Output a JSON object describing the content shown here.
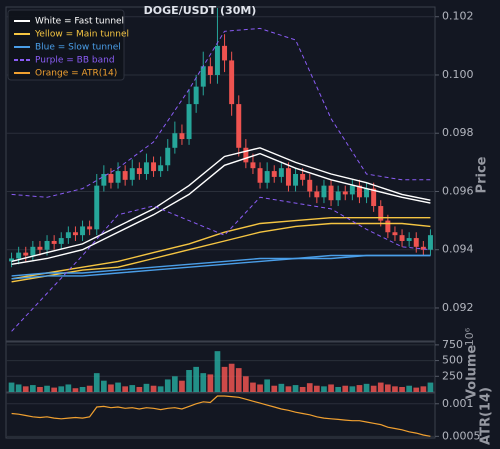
{
  "chart_data": [
    {
      "type": "candlestick",
      "title": "DOGE/USDT (30M)",
      "y_label": "Price",
      "grid": true,
      "legend_loc": "upper left",
      "up_color": "#26a69a",
      "down_color": "#ef5350",
      "ylim": [
        0.0909,
        0.1023
      ],
      "yticks": [
        0.092,
        0.094,
        0.096,
        0.098,
        {
          "value": 0.1,
          "label": "0.100"
        },
        0.102
      ],
      "open": [
        0.0936,
        0.0937,
        0.0939,
        0.0938,
        0.0941,
        0.094,
        0.0943,
        0.0942,
        0.0944,
        0.0946,
        0.0945,
        0.0948,
        0.0947,
        0.0962,
        0.0966,
        0.0963,
        0.0967,
        0.0964,
        0.0968,
        0.0966,
        0.097,
        0.0967,
        0.0969,
        0.0975,
        0.098,
        0.0978,
        0.099,
        0.0996,
        0.1003,
        0.1,
        0.101,
        0.1005,
        0.099,
        0.0975,
        0.097,
        0.0968,
        0.0963,
        0.0967,
        0.0965,
        0.0968,
        0.0962,
        0.0966,
        0.0964,
        0.096,
        0.0958,
        0.0962,
        0.0957,
        0.096,
        0.0959,
        0.0962,
        0.0958,
        0.0961,
        0.0955,
        0.095,
        0.0946,
        0.0945,
        0.0943,
        0.0944,
        0.0941,
        0.094
      ],
      "high": [
        0.0939,
        0.0941,
        0.0941,
        0.0943,
        0.0943,
        0.0945,
        0.0945,
        0.0946,
        0.0948,
        0.0948,
        0.095,
        0.095,
        0.0966,
        0.0969,
        0.0968,
        0.097,
        0.0969,
        0.0971,
        0.097,
        0.0973,
        0.0972,
        0.0972,
        0.0978,
        0.0984,
        0.0983,
        0.0995,
        0.1,
        0.1008,
        0.1006,
        0.1023,
        0.1014,
        0.1008,
        0.0993,
        0.0978,
        0.0973,
        0.097,
        0.097,
        0.0969,
        0.097,
        0.097,
        0.0968,
        0.0968,
        0.0966,
        0.0962,
        0.0964,
        0.0964,
        0.0962,
        0.0962,
        0.0964,
        0.0964,
        0.0963,
        0.0963,
        0.0957,
        0.0952,
        0.0948,
        0.0947,
        0.0946,
        0.0946,
        0.0943,
        0.0947
      ],
      "low": [
        0.0934,
        0.0935,
        0.0936,
        0.0936,
        0.0938,
        0.0938,
        0.094,
        0.094,
        0.0942,
        0.0943,
        0.0943,
        0.0945,
        0.0945,
        0.096,
        0.0961,
        0.0961,
        0.0962,
        0.0962,
        0.0964,
        0.0964,
        0.0965,
        0.0965,
        0.0967,
        0.0973,
        0.0976,
        0.0976,
        0.0987,
        0.0993,
        0.0997,
        0.0997,
        0.1001,
        0.0986,
        0.0972,
        0.0968,
        0.0966,
        0.0961,
        0.0961,
        0.0963,
        0.0963,
        0.096,
        0.096,
        0.0962,
        0.0958,
        0.0956,
        0.0956,
        0.0955,
        0.0955,
        0.0957,
        0.0957,
        0.0956,
        0.0956,
        0.0953,
        0.0948,
        0.0944,
        0.0943,
        0.0941,
        0.0941,
        0.0939,
        0.0938,
        0.0938
      ],
      "close": [
        0.0937,
        0.0939,
        0.0938,
        0.0941,
        0.094,
        0.0943,
        0.0942,
        0.0944,
        0.0946,
        0.0945,
        0.0948,
        0.0947,
        0.0962,
        0.0966,
        0.0963,
        0.0967,
        0.0964,
        0.0968,
        0.0966,
        0.097,
        0.0967,
        0.0969,
        0.0975,
        0.098,
        0.0978,
        0.099,
        0.0996,
        0.1003,
        0.1,
        0.101,
        0.1005,
        0.099,
        0.0975,
        0.097,
        0.0968,
        0.0963,
        0.0967,
        0.0965,
        0.0968,
        0.0962,
        0.0966,
        0.0964,
        0.096,
        0.0958,
        0.0962,
        0.0957,
        0.096,
        0.0959,
        0.0962,
        0.0958,
        0.0961,
        0.0955,
        0.095,
        0.0946,
        0.0945,
        0.0943,
        0.0944,
        0.0941,
        0.094,
        0.0945
      ],
      "line_x": [
        0,
        5,
        10,
        15,
        20,
        25,
        30,
        35,
        40,
        45,
        50,
        55,
        59
      ],
      "series": [
        {
          "name": "White = Fast tunnel",
          "color": "#ffffff",
          "dashed": false,
          "upper": [
            0.0936,
            0.0939,
            0.0942,
            0.0948,
            0.0954,
            0.0962,
            0.0972,
            0.0975,
            0.097,
            0.0966,
            0.0963,
            0.0959,
            0.0957
          ],
          "lower": [
            0.0935,
            0.0937,
            0.094,
            0.0946,
            0.0952,
            0.0959,
            0.0969,
            0.0973,
            0.0968,
            0.0964,
            0.0961,
            0.0958,
            0.0956
          ]
        },
        {
          "name": "Yellow = Main tunnel",
          "color": "#f5c542",
          "dashed": false,
          "upper": [
            0.093,
            0.0932,
            0.0934,
            0.0936,
            0.0939,
            0.0942,
            0.0946,
            0.0949,
            0.095,
            0.0951,
            0.0951,
            0.0951,
            0.0951
          ],
          "lower": [
            0.0929,
            0.0931,
            0.0933,
            0.0934,
            0.0937,
            0.094,
            0.0943,
            0.0946,
            0.0948,
            0.0949,
            0.0949,
            0.0949,
            0.0948
          ]
        },
        {
          "name": "Blue = Slow tunnel",
          "color": "#4a9ee8",
          "dashed": false,
          "upper": [
            0.0931,
            0.0932,
            0.0932,
            0.0933,
            0.0934,
            0.0935,
            0.0936,
            0.0937,
            0.0937,
            0.0938,
            0.0938,
            0.0938,
            0.0938
          ],
          "lower": [
            0.093,
            0.0931,
            0.0931,
            0.0932,
            0.0933,
            0.0934,
            0.0935,
            0.0936,
            0.0937,
            0.0937,
            0.0938,
            0.0938,
            0.0938
          ]
        },
        {
          "name": "Purple = BB band",
          "color": "#8a5cf5",
          "dashed": true,
          "upper": [
            0.0959,
            0.0958,
            0.0961,
            0.0968,
            0.0977,
            0.0995,
            0.1015,
            0.1016,
            0.1012,
            0.0985,
            0.0966,
            0.0964,
            0.0964
          ],
          "lower": [
            0.0912,
            0.0925,
            0.0938,
            0.0952,
            0.0955,
            0.095,
            0.0945,
            0.0958,
            0.0956,
            0.0954,
            0.0947,
            0.0941,
            0.094
          ]
        }
      ]
    },
    {
      "type": "bar",
      "y_label": "Volume",
      "scale_label": "10⁶",
      "ylim": [
        0,
        780
      ],
      "yticks": [
        250,
        500,
        750
      ],
      "values": [
        150,
        120,
        90,
        110,
        80,
        100,
        70,
        90,
        120,
        60,
        80,
        100,
        300,
        180,
        120,
        150,
        90,
        110,
        80,
        130,
        100,
        90,
        200,
        250,
        180,
        350,
        400,
        300,
        280,
        650,
        400,
        450,
        380,
        250,
        150,
        120,
        200,
        100,
        130,
        90,
        110,
        80,
        140,
        100,
        90,
        120,
        80,
        100,
        90,
        110,
        130,
        100,
        150,
        120,
        90,
        80,
        100,
        70,
        90,
        150
      ]
    },
    {
      "type": "line",
      "y_label": "ATR(14)",
      "ylim": [
        0.00049,
        0.00115
      ],
      "yticks": [
        0.0005,
        0.001
      ],
      "series": [
        {
          "name": "Orange = ATR(14)",
          "color": "#f0a030",
          "values": [
            0.00085,
            0.00084,
            0.00082,
            0.0008,
            0.00079,
            0.0008,
            0.00078,
            0.00077,
            0.00078,
            0.00079,
            0.00078,
            0.0008,
            0.00095,
            0.00096,
            0.00094,
            0.00095,
            0.00093,
            0.00094,
            0.00092,
            0.00094,
            0.00093,
            0.00091,
            0.00093,
            0.00094,
            0.00092,
            0.00096,
            0.001,
            0.00103,
            0.00102,
            0.00112,
            0.00112,
            0.00111,
            0.0011,
            0.00107,
            0.00104,
            0.00101,
            0.00098,
            0.00095,
            0.00092,
            0.0009,
            0.00087,
            0.00085,
            0.00083,
            0.0008,
            0.00078,
            0.00077,
            0.00076,
            0.00075,
            0.00074,
            0.00074,
            0.00072,
            0.0007,
            0.00068,
            0.00064,
            0.00062,
            0.0006,
            0.00057,
            0.00055,
            0.00052,
            0.0005
          ]
        }
      ]
    }
  ]
}
